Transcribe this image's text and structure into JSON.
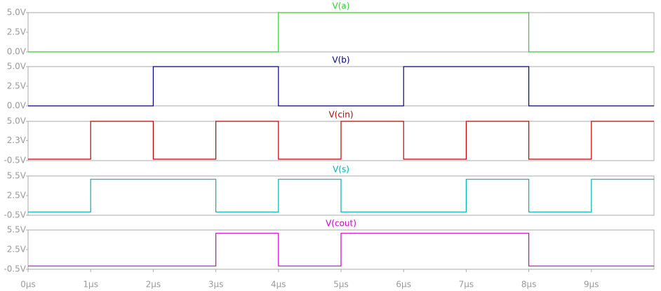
{
  "chart_data": [
    {
      "type": "line",
      "title": "V(a)",
      "color": "#33cc33",
      "x": [
        0,
        4,
        4,
        8,
        8,
        10
      ],
      "values": [
        0,
        0,
        5,
        5,
        0,
        0
      ],
      "xlim": [
        0,
        10
      ],
      "ylim": [
        0,
        5
      ],
      "yticks": [
        {
          "value": 0,
          "label": "0.0V"
        },
        {
          "value": 2.5,
          "label": "2.5V"
        },
        {
          "value": 5,
          "label": "5.0V"
        }
      ]
    },
    {
      "type": "line",
      "title": "V(b)",
      "color": "#000080",
      "x": [
        0,
        2,
        2,
        4,
        4,
        6,
        6,
        8,
        8,
        10
      ],
      "values": [
        0,
        0,
        5,
        5,
        0,
        0,
        5,
        5,
        0,
        0
      ],
      "xlim": [
        0,
        10
      ],
      "ylim": [
        0,
        5
      ],
      "yticks": [
        {
          "value": 0,
          "label": "0.0V"
        },
        {
          "value": 2.5,
          "label": "2.5V"
        },
        {
          "value": 5,
          "label": "5.0V"
        }
      ]
    },
    {
      "type": "line",
      "title": "V(cin)",
      "color": "#c00000",
      "x": [
        0,
        1,
        1,
        2,
        2,
        3,
        3,
        4,
        4,
        5,
        5,
        6,
        6,
        7,
        7,
        8,
        8,
        9,
        9,
        10
      ],
      "values": [
        -0.3,
        -0.3,
        5,
        5,
        -0.3,
        -0.3,
        5,
        5,
        -0.3,
        -0.3,
        5,
        5,
        -0.3,
        -0.3,
        5,
        5,
        -0.3,
        -0.3,
        5,
        5
      ],
      "xlim": [
        0,
        10
      ],
      "ylim": [
        -0.5,
        5
      ],
      "yticks": [
        {
          "value": -0.5,
          "label": "-0.5V"
        },
        {
          "value": 2.3,
          "label": "2.3V"
        },
        {
          "value": 5,
          "label": "5.0V"
        }
      ]
    },
    {
      "type": "line",
      "title": "V(s)",
      "color": "#00b0b0",
      "x": [
        0,
        1,
        1,
        3,
        3,
        4,
        4,
        5,
        5,
        7,
        7,
        8,
        8,
        9,
        9,
        10
      ],
      "values": [
        0,
        0,
        5,
        5,
        0,
        0,
        5,
        5,
        0,
        0,
        5,
        5,
        0,
        0,
        5,
        5
      ],
      "xlim": [
        0,
        10
      ],
      "ylim": [
        -0.5,
        5.5
      ],
      "yticks": [
        {
          "value": -0.5,
          "label": "-0.5V"
        },
        {
          "value": 2.5,
          "label": "2.5V"
        },
        {
          "value": 5.5,
          "label": "5.5V"
        }
      ]
    },
    {
      "type": "line",
      "title": "V(cout)",
      "color": "#cc00cc",
      "x": [
        0,
        3,
        3,
        4,
        4,
        5,
        5,
        8,
        8,
        10
      ],
      "values": [
        0,
        0,
        5,
        5,
        0,
        0,
        5,
        5,
        0,
        0
      ],
      "xlim": [
        0,
        10
      ],
      "ylim": [
        -0.5,
        5.5
      ],
      "yticks": [
        {
          "value": -0.5,
          "label": "-0.5V"
        },
        {
          "value": 2.5,
          "label": "2.5V"
        },
        {
          "value": 5.5,
          "label": "5.5V"
        }
      ],
      "xticks": [
        {
          "value": 0,
          "label": "0µs"
        },
        {
          "value": 1,
          "label": "1µs"
        },
        {
          "value": 2,
          "label": "2µs"
        },
        {
          "value": 3,
          "label": "3µs"
        },
        {
          "value": 4,
          "label": "4µs"
        },
        {
          "value": 5,
          "label": "5µs"
        },
        {
          "value": 6,
          "label": "6µs"
        },
        {
          "value": 7,
          "label": "7µs"
        },
        {
          "value": 8,
          "label": "8µs"
        },
        {
          "value": 9,
          "label": "9µs"
        }
      ]
    }
  ]
}
